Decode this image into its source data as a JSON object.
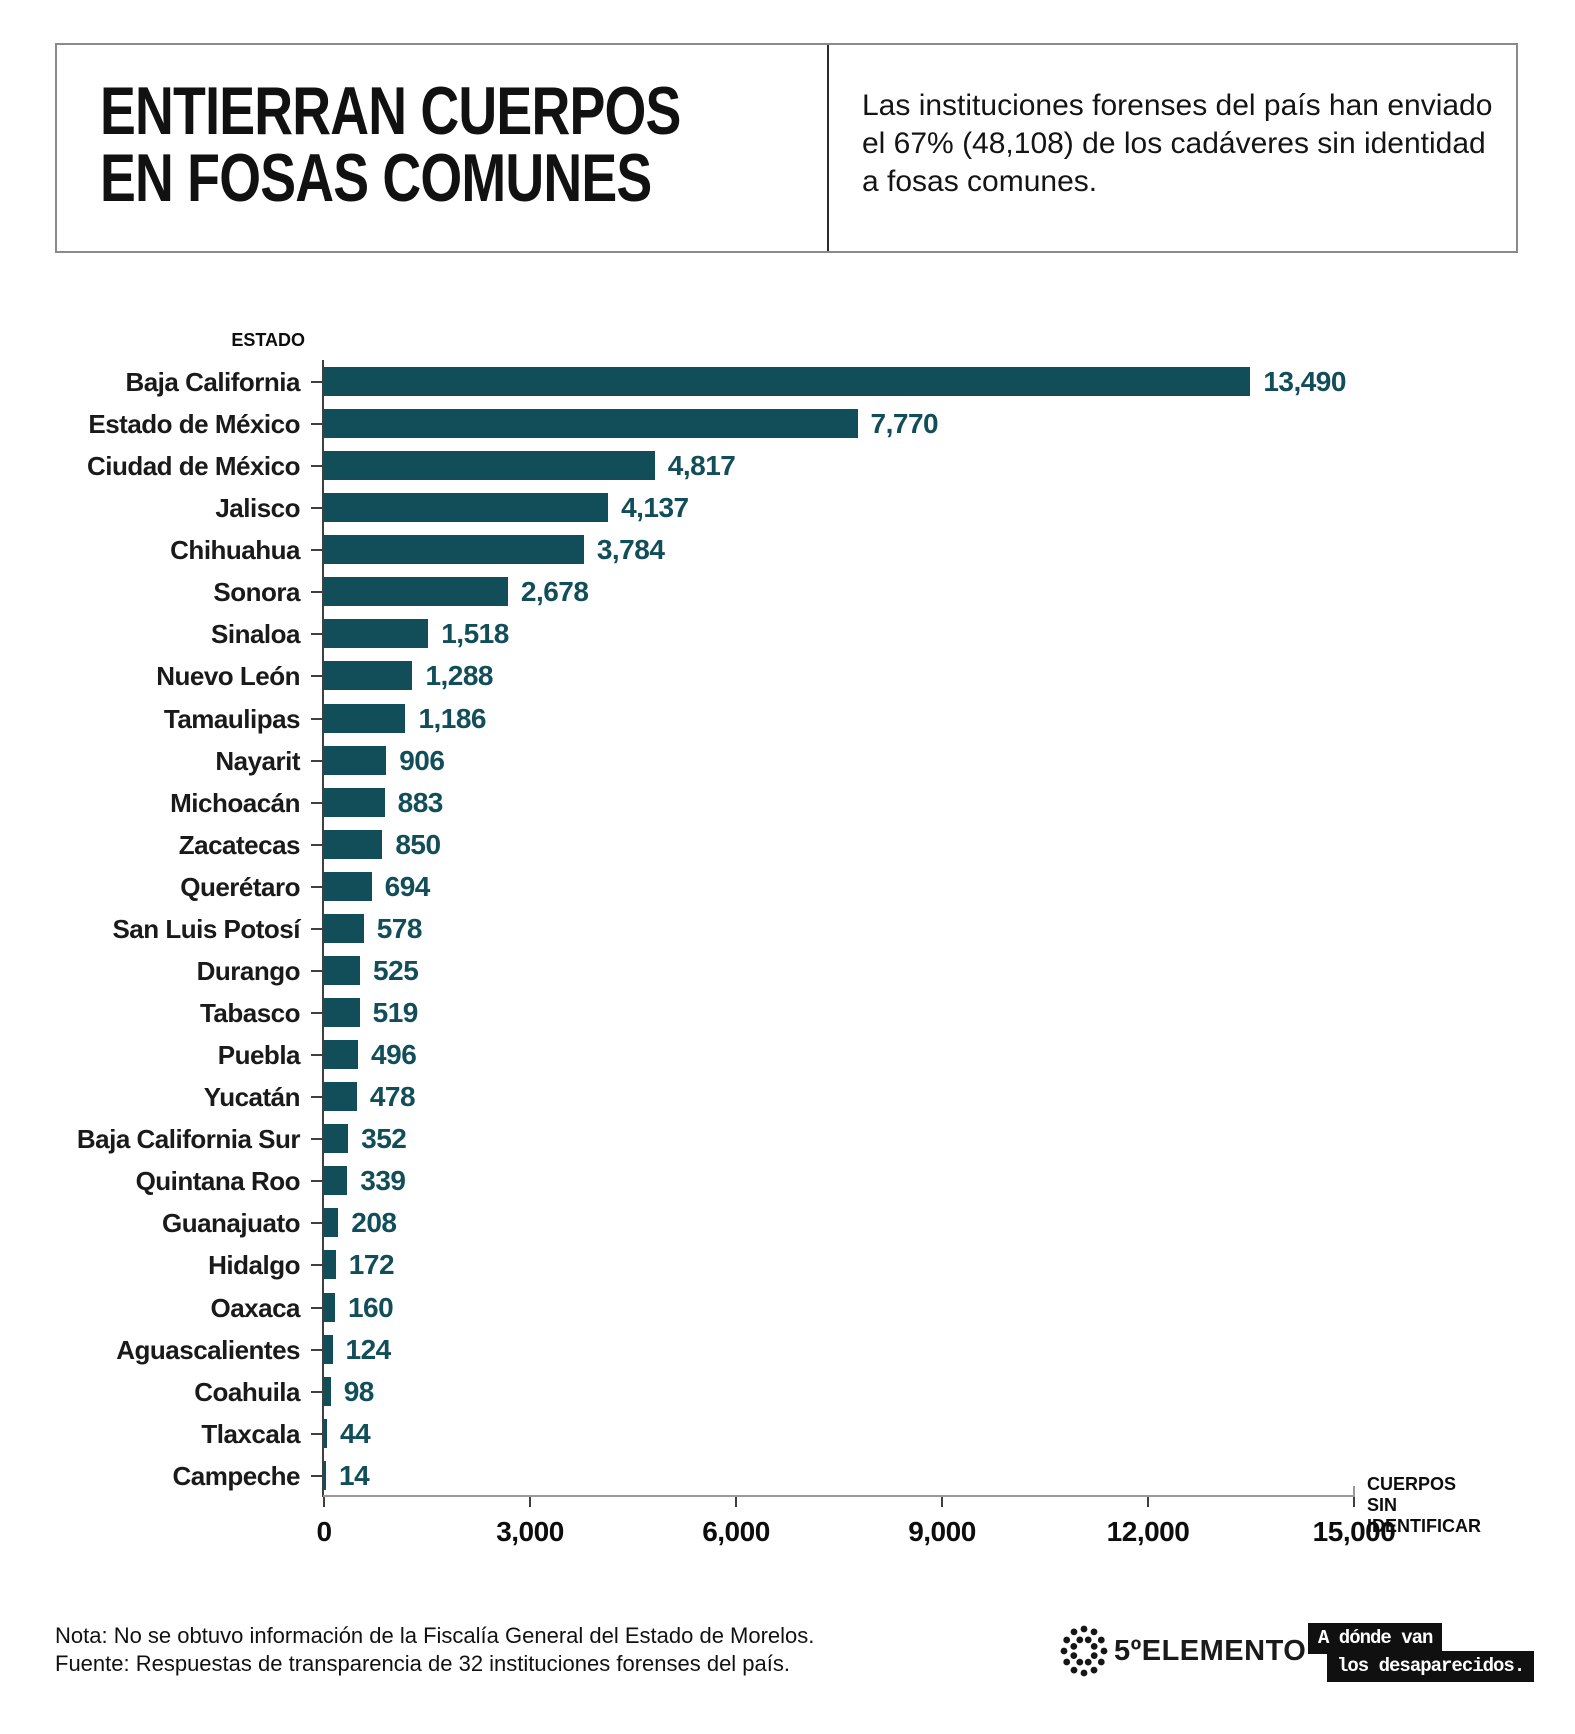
{
  "header": {
    "title_lines": [
      "ENTIERRAN CUERPOS",
      "EN FOSAS COMUNES"
    ],
    "subtitle": "Las instituciones forenses del país han enviado el 67% (48,108) de los cadáveres sin identidad a fosas comunes."
  },
  "chart_data": {
    "type": "bar",
    "orientation": "horizontal",
    "title": "ENTIERRAN CUERPOS EN FOSAS COMUNES",
    "xlabel": "CUERPOS SIN IDENTIFICAR",
    "ylabel": "ESTADO",
    "xlim": [
      0,
      15000
    ],
    "grid": false,
    "bar_color": "#124e5a",
    "x_ticks": [
      {
        "value": 0,
        "label": "0"
      },
      {
        "value": 3000,
        "label": "3,000"
      },
      {
        "value": 6000,
        "label": "6,000"
      },
      {
        "value": 9000,
        "label": "9,000"
      },
      {
        "value": 12000,
        "label": "12,000"
      },
      {
        "value": 15000,
        "label": "15,000"
      }
    ],
    "categories": [
      "Baja California",
      "Estado de México",
      "Ciudad de México",
      "Jalisco",
      "Chihuahua",
      "Sonora",
      "Sinaloa",
      "Nuevo León",
      "Tamaulipas",
      "Nayarit",
      "Michoacán",
      "Zacatecas",
      "Querétaro",
      "San Luis Potosí",
      "Durango",
      "Tabasco",
      "Puebla",
      "Yucatán",
      "Baja California Sur",
      "Quintana Roo",
      "Guanajuato",
      "Hidalgo",
      "Oaxaca",
      "Aguascalientes",
      "Coahuila",
      "Tlaxcala",
      "Campeche"
    ],
    "values": [
      13490,
      7770,
      4817,
      4137,
      3784,
      2678,
      1518,
      1288,
      1186,
      906,
      883,
      850,
      694,
      578,
      525,
      519,
      496,
      478,
      352,
      339,
      208,
      172,
      160,
      124,
      98,
      44,
      14
    ],
    "value_labels": [
      "13,490",
      "7,770",
      "4,817",
      "4,137",
      "3,784",
      "2,678",
      "1,518",
      "1,288",
      "1,186",
      "906",
      "883",
      "850",
      "694",
      "578",
      "525",
      "519",
      "496",
      "478",
      "352",
      "339",
      "208",
      "172",
      "160",
      "124",
      "98",
      "44",
      "14"
    ]
  },
  "footer": {
    "note": "Nota: No se obtuvo información de la Fiscalía General del Estado de Morelos.",
    "source": "Fuente: Respuestas de transparencia de 32 instituciones forenses del país."
  },
  "logos": {
    "quinto_elemento": "5ºELEMENTO",
    "adonde_line1": "A dónde van",
    "adonde_line2": "los desaparecidos."
  }
}
